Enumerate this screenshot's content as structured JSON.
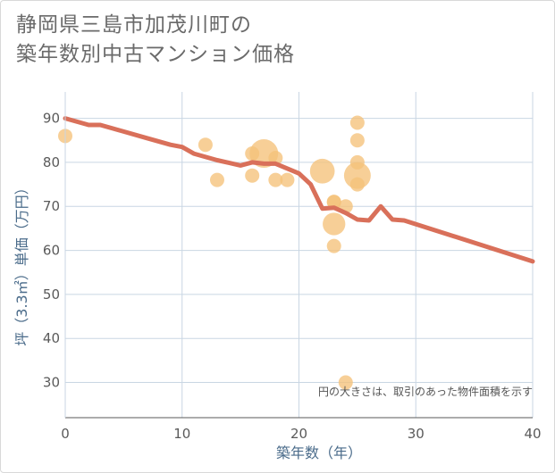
{
  "title_line1": "静岡県三島市加茂川町の",
  "title_line2": "築年数別中古マンション価格",
  "chart_data": {
    "type": "scatter",
    "title": "静岡県三島市加茂川町の築年数別中古マンション価格",
    "xlabel": "築年数（年）",
    "ylabel": "坪（3.3㎡）単価（万円）",
    "xlim": [
      0,
      40
    ],
    "ylim": [
      22,
      96
    ],
    "xticks": [
      0,
      10,
      20,
      30,
      40
    ],
    "yticks": [
      30,
      40,
      50,
      60,
      70,
      80,
      90
    ],
    "grid": true,
    "annotation": "円の大きさは、取引のあった物件面積を示す",
    "bubble_color": "#f5c27a",
    "line_color": "#d9705a",
    "points": [
      {
        "x": 0,
        "y": 86,
        "s": 1
      },
      {
        "x": 12,
        "y": 84,
        "s": 1
      },
      {
        "x": 13,
        "y": 76,
        "s": 1
      },
      {
        "x": 16,
        "y": 82,
        "s": 1
      },
      {
        "x": 16,
        "y": 77,
        "s": 1
      },
      {
        "x": 17,
        "y": 82,
        "s": 4
      },
      {
        "x": 18,
        "y": 81,
        "s": 1
      },
      {
        "x": 18,
        "y": 76,
        "s": 1
      },
      {
        "x": 19,
        "y": 76,
        "s": 1
      },
      {
        "x": 22,
        "y": 78,
        "s": 3
      },
      {
        "x": 23,
        "y": 71,
        "s": 1
      },
      {
        "x": 23,
        "y": 71,
        "s": 1
      },
      {
        "x": 23,
        "y": 66,
        "s": 2.5
      },
      {
        "x": 23,
        "y": 61,
        "s": 1
      },
      {
        "x": 24,
        "y": 70,
        "s": 1
      },
      {
        "x": 24,
        "y": 30,
        "s": 1
      },
      {
        "x": 25,
        "y": 89,
        "s": 1
      },
      {
        "x": 25,
        "y": 85,
        "s": 1
      },
      {
        "x": 25,
        "y": 80,
        "s": 1
      },
      {
        "x": 25,
        "y": 77,
        "s": 3.5
      },
      {
        "x": 25,
        "y": 75,
        "s": 1
      }
    ],
    "trend": [
      {
        "x": 0,
        "y": 90
      },
      {
        "x": 2,
        "y": 88.5
      },
      {
        "x": 3,
        "y": 88.5
      },
      {
        "x": 5,
        "y": 87
      },
      {
        "x": 7,
        "y": 85.5
      },
      {
        "x": 9,
        "y": 84
      },
      {
        "x": 10,
        "y": 83.5
      },
      {
        "x": 11,
        "y": 82
      },
      {
        "x": 13,
        "y": 80.5
      },
      {
        "x": 15,
        "y": 79.3
      },
      {
        "x": 16,
        "y": 80
      },
      {
        "x": 17,
        "y": 79.7
      },
      {
        "x": 18,
        "y": 79.7
      },
      {
        "x": 20,
        "y": 77.5
      },
      {
        "x": 21,
        "y": 75
      },
      {
        "x": 22,
        "y": 69.5
      },
      {
        "x": 23,
        "y": 69.7
      },
      {
        "x": 24,
        "y": 68.5
      },
      {
        "x": 25,
        "y": 67
      },
      {
        "x": 26,
        "y": 66.8
      },
      {
        "x": 27,
        "y": 70
      },
      {
        "x": 28,
        "y": 67
      },
      {
        "x": 29,
        "y": 66.8
      },
      {
        "x": 40,
        "y": 57.5
      }
    ]
  }
}
